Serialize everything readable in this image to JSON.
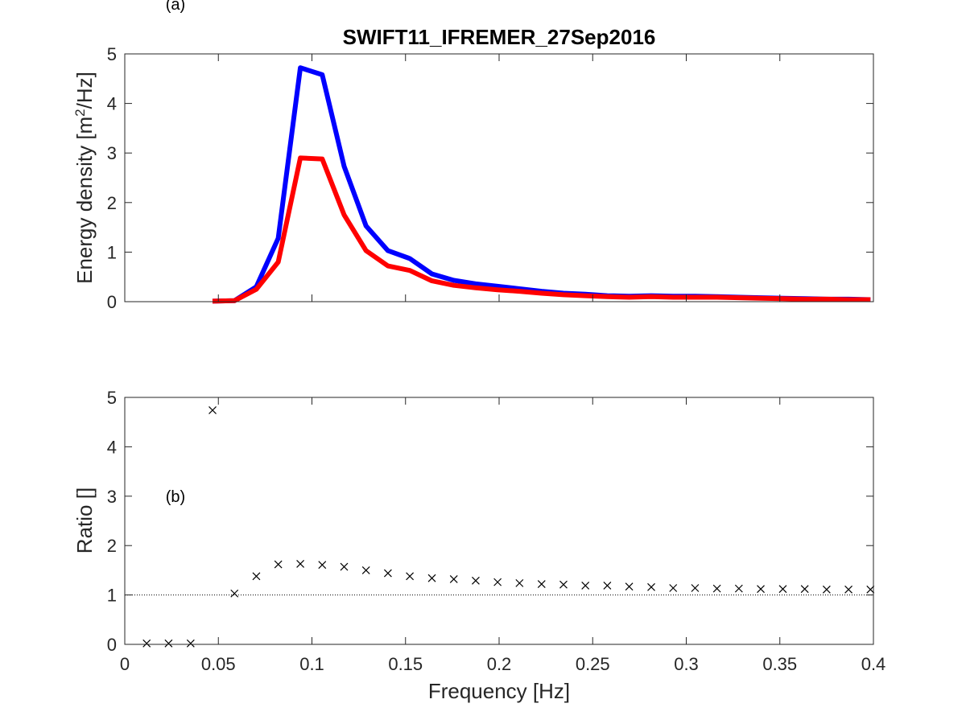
{
  "chart_data": [
    {
      "type": "line",
      "title": "SWIFT11_IFREMER_27Sep2016",
      "panel_label": "(a)",
      "ylabel_main": "Energy density [m",
      "ylabel_sup": "2",
      "ylabel_tail": "/Hz]",
      "xlim": [
        0,
        0.4
      ],
      "ylim": [
        0,
        5
      ],
      "xticks": [
        0,
        0.05,
        0.1,
        0.15,
        0.2,
        0.25,
        0.3,
        0.35,
        0.4
      ],
      "xticklabels_shown": false,
      "yticks": [
        0,
        1,
        2,
        3,
        4,
        5
      ],
      "ytick_labels": [
        "0",
        "1",
        "2",
        "3",
        "4",
        "5"
      ],
      "grid": false,
      "x": [
        0.0469,
        0.0586,
        0.0703,
        0.082,
        0.0938,
        0.1055,
        0.1172,
        0.1289,
        0.1406,
        0.1523,
        0.1641,
        0.1758,
        0.1875,
        0.1992,
        0.2109,
        0.2227,
        0.2344,
        0.2461,
        0.2578,
        0.2695,
        0.2813,
        0.293,
        0.3047,
        0.3164,
        0.3281,
        0.3398,
        0.3516,
        0.3633,
        0.375,
        0.3867,
        0.3984
      ],
      "series": [
        {
          "color": "#0000ff",
          "values": [
            0.01,
            0.02,
            0.3,
            1.28,
            4.72,
            4.58,
            2.73,
            1.53,
            1.03,
            0.87,
            0.56,
            0.43,
            0.36,
            0.31,
            0.26,
            0.21,
            0.17,
            0.15,
            0.12,
            0.11,
            0.12,
            0.11,
            0.11,
            0.1,
            0.09,
            0.08,
            0.07,
            0.06,
            0.05,
            0.05,
            0.04
          ]
        },
        {
          "color": "#ff0000",
          "values": [
            0.01,
            0.02,
            0.25,
            0.8,
            2.9,
            2.88,
            1.75,
            1.03,
            0.72,
            0.63,
            0.42,
            0.33,
            0.28,
            0.24,
            0.21,
            0.17,
            0.14,
            0.12,
            0.1,
            0.09,
            0.1,
            0.09,
            0.09,
            0.09,
            0.08,
            0.07,
            0.06,
            0.05,
            0.05,
            0.04,
            0.04
          ]
        }
      ]
    },
    {
      "type": "scatter",
      "panel_label": "(b)",
      "ylabel": "Ratio []",
      "xlabel": "Frequency [Hz]",
      "xlim": [
        0,
        0.4
      ],
      "ylim": [
        0,
        5
      ],
      "xticks": [
        0,
        0.05,
        0.1,
        0.15,
        0.2,
        0.25,
        0.3,
        0.35,
        0.4
      ],
      "xtick_labels": [
        "0",
        "0.05",
        "0.1",
        "0.15",
        "0.2",
        "0.25",
        "0.3",
        "0.35",
        "0.4"
      ],
      "yticks": [
        0,
        1,
        2,
        3,
        4,
        5
      ],
      "ytick_labels": [
        "0",
        "1",
        "2",
        "3",
        "4",
        "5"
      ],
      "grid": false,
      "reference_line_y": 1,
      "marker": "x",
      "marker_color": "#000000",
      "x": [
        0.0117,
        0.0234,
        0.0352,
        0.0469,
        0.0586,
        0.0703,
        0.082,
        0.0938,
        0.1055,
        0.1172,
        0.1289,
        0.1406,
        0.1523,
        0.1641,
        0.1758,
        0.1875,
        0.1992,
        0.2109,
        0.2227,
        0.2344,
        0.2461,
        0.2578,
        0.2695,
        0.2813,
        0.293,
        0.3047,
        0.3164,
        0.3281,
        0.3398,
        0.3516,
        0.3633,
        0.375,
        0.3867,
        0.3984
      ],
      "y": [
        0.02,
        0.02,
        0.02,
        4.74,
        1.03,
        1.38,
        1.62,
        1.63,
        1.61,
        1.57,
        1.5,
        1.44,
        1.38,
        1.34,
        1.32,
        1.29,
        1.26,
        1.24,
        1.22,
        1.21,
        1.19,
        1.19,
        1.17,
        1.16,
        1.14,
        1.14,
        1.13,
        1.13,
        1.12,
        1.12,
        1.12,
        1.11,
        1.11,
        1.11
      ]
    }
  ]
}
